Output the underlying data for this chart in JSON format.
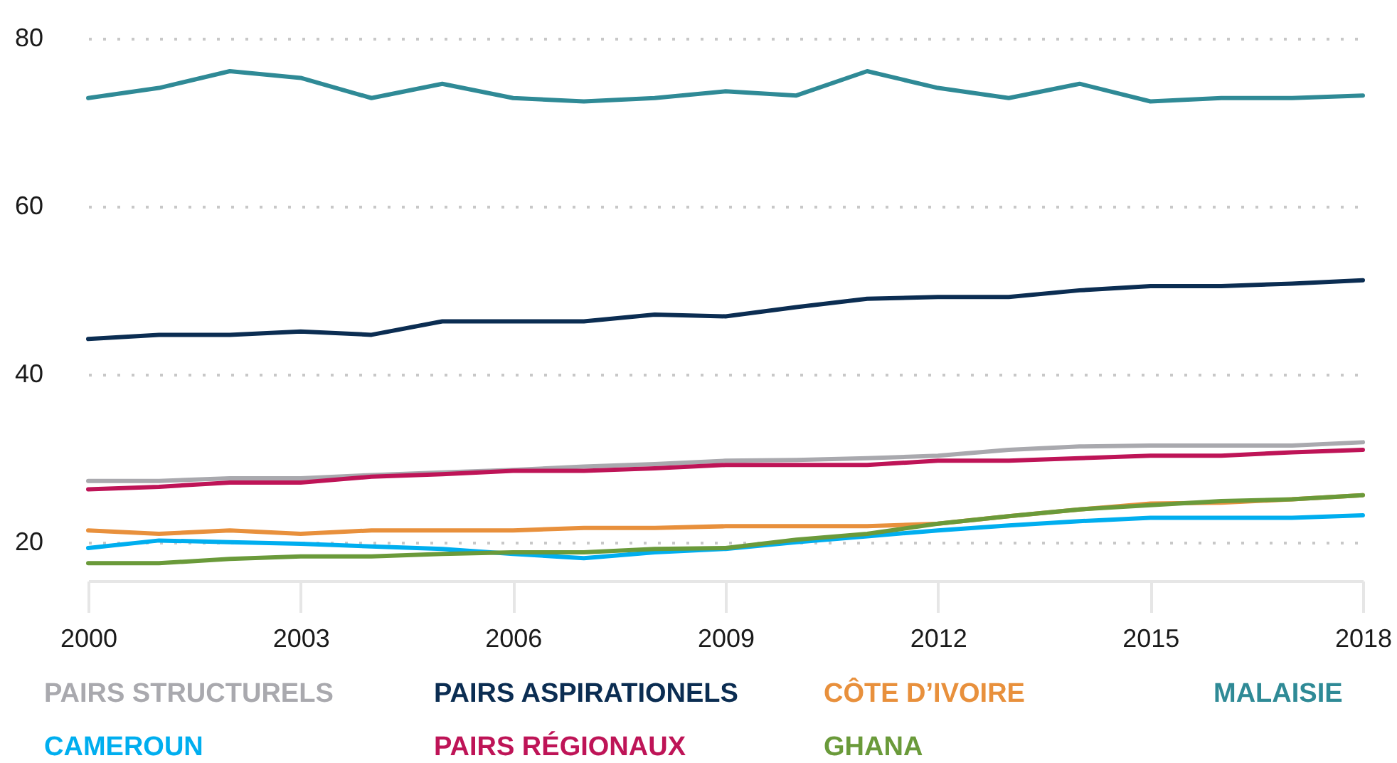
{
  "chart_data": {
    "type": "line",
    "x": [
      2000,
      2001,
      2002,
      2003,
      2004,
      2005,
      2006,
      2007,
      2008,
      2009,
      2010,
      2011,
      2012,
      2013,
      2014,
      2015,
      2016,
      2017,
      2018
    ],
    "series": [
      {
        "name": "PAIRS STRUCTURELS",
        "color": "#a9a9ae",
        "values": [
          27.3,
          27.3,
          27.6,
          27.6,
          28.0,
          28.3,
          28.6,
          29.0,
          29.3,
          29.7,
          29.8,
          30.0,
          30.3,
          31.0,
          31.4,
          31.5,
          31.5,
          31.5,
          31.9
        ]
      },
      {
        "name": "PAIRS ASPIRATIONELS",
        "color": "#0b2d52",
        "values": [
          44.2,
          44.7,
          44.7,
          45.1,
          44.7,
          46.3,
          46.3,
          46.3,
          47.1,
          46.9,
          48.0,
          49.0,
          49.2,
          49.2,
          50.0,
          50.5,
          50.5,
          50.8,
          51.2
        ]
      },
      {
        "name": "CÔTE D’IVOIRE",
        "color": "#e8903c",
        "values": [
          21.4,
          21.0,
          21.4,
          21.0,
          21.4,
          21.4,
          21.4,
          21.7,
          21.7,
          21.9,
          21.9,
          21.9,
          22.2,
          23.1,
          23.9,
          24.6,
          24.7,
          25.1,
          25.6
        ]
      },
      {
        "name": "MALAISIE",
        "color": "#2f8a96",
        "values": [
          72.9,
          74.1,
          76.1,
          75.3,
          72.9,
          74.6,
          72.9,
          72.5,
          72.9,
          73.7,
          73.2,
          76.1,
          74.1,
          72.9,
          74.6,
          72.5,
          72.9,
          72.9,
          73.2
        ]
      },
      {
        "name": "CAMEROUN",
        "color": "#00aeef",
        "values": [
          19.3,
          20.2,
          20.0,
          19.8,
          19.5,
          19.2,
          18.6,
          18.1,
          18.8,
          19.2,
          20.0,
          20.7,
          21.4,
          22.0,
          22.5,
          22.9,
          22.9,
          22.9,
          23.2
        ]
      },
      {
        "name": "PAIRS RÉGIONAUX",
        "color": "#be1457",
        "values": [
          26.3,
          26.6,
          27.1,
          27.1,
          27.8,
          28.1,
          28.5,
          28.5,
          28.8,
          29.2,
          29.2,
          29.2,
          29.7,
          29.7,
          30.0,
          30.3,
          30.3,
          30.7,
          31.0
        ]
      },
      {
        "name": "GHANA",
        "color": "#6a9a3a",
        "values": [
          17.5,
          17.5,
          18.0,
          18.3,
          18.3,
          18.6,
          18.8,
          18.8,
          19.2,
          19.3,
          20.3,
          21.0,
          22.2,
          23.1,
          23.9,
          24.4,
          24.9,
          25.1,
          25.6
        ]
      }
    ],
    "xlim": [
      2000,
      2018
    ],
    "xticks": [
      2000,
      2003,
      2006,
      2009,
      2012,
      2015,
      2018
    ],
    "ylim": [
      15.4,
      80
    ],
    "yticks": [
      20,
      40,
      60,
      80
    ],
    "grid": "y",
    "legend": "bottom",
    "marker": "none",
    "line_style": "solid"
  }
}
